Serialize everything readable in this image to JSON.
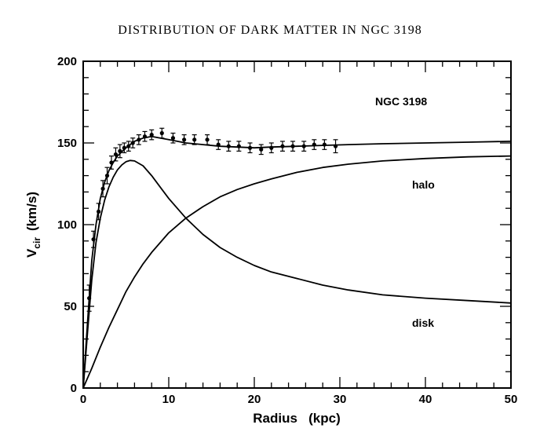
{
  "chart_data": {
    "type": "line",
    "title": "DISTRIBUTION OF DARK MATTER IN NGC 3198",
    "xlabel": "Radius   (kpc)",
    "ylabel_main": "V",
    "ylabel_sub": "cir",
    "ylabel_unit": "(km/s)",
    "xlim": [
      0,
      50
    ],
    "ylim": [
      0,
      200
    ],
    "xticks": [
      0,
      10,
      20,
      30,
      40,
      50
    ],
    "xtick_labels": [
      "0",
      "10",
      "20",
      "30",
      "40",
      "50"
    ],
    "yticks": [
      0,
      50,
      100,
      150,
      200
    ],
    "ytick_labels": [
      "0",
      "50",
      "100",
      "150",
      "200"
    ],
    "grid": false,
    "annotations": {
      "galaxy": "NGC 3198",
      "halo": "halo",
      "disk": "disk"
    },
    "observations": {
      "x": [
        0.7,
        1.2,
        1.8,
        2.3,
        2.8,
        3.3,
        3.8,
        4.3,
        4.8,
        5.3,
        5.8,
        6.5,
        7.2,
        8.0,
        9.2,
        10.5,
        11.8,
        13.0,
        14.5,
        15.8,
        17.0,
        18.2,
        19.5,
        20.8,
        22.0,
        23.3,
        24.5,
        25.8,
        27.0,
        28.2,
        29.5
      ],
      "y": [
        55,
        91,
        108,
        122,
        130,
        138,
        143,
        145,
        147,
        148,
        150,
        152,
        154,
        155,
        156,
        153,
        152,
        152,
        152,
        149,
        148,
        148,
        147,
        146,
        147,
        148,
        148,
        148,
        149,
        149,
        148
      ],
      "err": [
        8,
        5,
        5,
        5,
        5,
        4,
        4,
        4,
        3,
        3,
        3,
        3,
        3,
        3,
        3,
        3,
        3,
        3,
        3,
        3,
        3,
        3,
        3,
        3,
        3,
        3,
        3,
        3,
        3,
        3,
        4
      ]
    },
    "series": [
      {
        "x": [
          0,
          0.5,
          1,
          1.5,
          2,
          2.5,
          3,
          3.5,
          4,
          5,
          6,
          7,
          8,
          9,
          10,
          12,
          14,
          16,
          18,
          20,
          22,
          25,
          28,
          31,
          35,
          40,
          45,
          50
        ],
        "y": [
          0,
          40,
          78,
          100,
          116,
          126,
          133,
          138,
          142,
          147,
          151,
          153,
          154,
          153,
          152,
          150,
          149,
          148,
          147.5,
          147,
          147.5,
          148,
          148.5,
          149,
          149.5,
          150,
          150.5,
          151
        ]
      },
      {
        "x": [
          0,
          0.5,
          1,
          1.5,
          2,
          2.5,
          3,
          3.5,
          4,
          4.5,
          5,
          5.5,
          6,
          7,
          8,
          9,
          10,
          12,
          14,
          16,
          18,
          20,
          22,
          25,
          28,
          31,
          35,
          40,
          45,
          50
        ],
        "y": [
          0,
          34,
          66,
          89,
          104,
          115,
          123,
          129,
          133.5,
          136.5,
          138.5,
          139.3,
          139,
          136,
          130,
          123,
          116,
          104,
          94,
          86,
          80,
          75,
          71,
          67,
          63,
          60,
          57,
          55,
          53.5,
          52
        ]
      },
      {
        "x": [
          0,
          1,
          2,
          3,
          4,
          5,
          6,
          7,
          8,
          9,
          10,
          12,
          14,
          16,
          18,
          20,
          22,
          25,
          28,
          31,
          35,
          40,
          45,
          50
        ],
        "y": [
          0,
          12,
          25,
          37,
          48,
          59,
          68,
          76,
          83,
          89,
          95,
          104,
          111,
          117,
          121.5,
          125,
          128,
          132,
          135,
          137,
          139,
          140.5,
          141.5,
          142
        ]
      }
    ]
  }
}
